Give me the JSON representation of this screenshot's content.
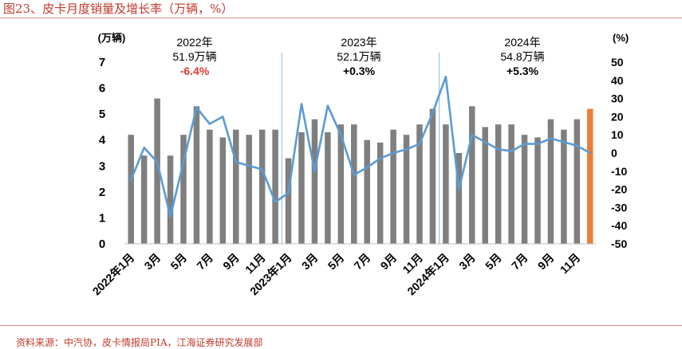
{
  "figure": {
    "title": "图23、皮卡月度销量及增长率（万辆，%）",
    "source": "资料来源：中汽协，皮卡情报局PIA，江海证券研究发展部"
  },
  "colors": {
    "bar": "#7f7f7f",
    "bar_highlight": "#ed7d31",
    "line": "#5b9bd5",
    "divider": "#9dc3e6",
    "title_red": "#c0392b",
    "neg_red": "#e03c31"
  },
  "chart_data": {
    "type": "bar",
    "categories": [
      "2022年1月",
      "2月",
      "3月",
      "4月",
      "5月",
      "6月",
      "7月",
      "8月",
      "9月",
      "10月",
      "11月",
      "12月",
      "2023年1月",
      "2月",
      "3月",
      "4月",
      "5月",
      "6月",
      "7月",
      "8月",
      "9月",
      "10月",
      "11月",
      "12月",
      "2024年1月",
      "2月",
      "3月",
      "4月",
      "5月",
      "6月",
      "7月",
      "8月",
      "9月",
      "10月",
      "11月",
      "12月"
    ],
    "x_tick_labels": [
      "2022年1月",
      "",
      "3月",
      "",
      "5月",
      "",
      "7月",
      "",
      "9月",
      "",
      "11月",
      "",
      "2023年1月",
      "",
      "3月",
      "",
      "5月",
      "",
      "7月",
      "",
      "9月",
      "",
      "11月",
      "",
      "2024年1月",
      "",
      "3月",
      "",
      "5月",
      "",
      "7月",
      "",
      "9月",
      "",
      "11月",
      ""
    ],
    "series": [
      {
        "kind": "bar",
        "axis": "left",
        "values": [
          4.2,
          3.4,
          5.6,
          3.4,
          4.2,
          5.3,
          4.4,
          4.1,
          4.4,
          4.2,
          4.4,
          4.4,
          3.3,
          4.3,
          4.8,
          4.3,
          4.6,
          4.6,
          4.0,
          3.9,
          4.4,
          4.2,
          4.6,
          5.2,
          4.6,
          3.5,
          5.3,
          4.5,
          4.6,
          4.6,
          4.2,
          4.1,
          4.8,
          4.4,
          4.8,
          5.2
        ],
        "highlight_index": 35
      },
      {
        "kind": "line",
        "axis": "right",
        "values": [
          -15,
          3,
          -5,
          -35,
          -5,
          25,
          16,
          20,
          -5,
          -7,
          -9,
          -27,
          -22,
          27,
          -10,
          26,
          10,
          -12,
          -8,
          -3,
          0,
          2,
          5,
          22,
          42,
          -20,
          10,
          6,
          2,
          1,
          5,
          5,
          8,
          6,
          4,
          0
        ]
      }
    ],
    "y_left": {
      "label": "(万辆)",
      "ylim": [
        0,
        7
      ],
      "ticks": [
        "0",
        "1",
        "2",
        "3",
        "4",
        "5",
        "6",
        "7"
      ]
    },
    "y_right": {
      "label": "(%)",
      "ylim": [
        -50,
        50
      ],
      "ticks": [
        "-50",
        "-40",
        "-30",
        "-20",
        "-10",
        "0",
        "10",
        "20",
        "30",
        "40",
        "50"
      ]
    },
    "annotations": [
      {
        "year": "2022年",
        "total": "51.9万辆",
        "growth": "-6.4%",
        "negative": true
      },
      {
        "year": "2023年",
        "total": "52.1万辆",
        "growth": "+0.3%",
        "negative": false
      },
      {
        "year": "2024年",
        "total": "54.8万辆",
        "growth": "+5.3%",
        "negative": false
      }
    ],
    "grid": false,
    "legend": "none"
  }
}
